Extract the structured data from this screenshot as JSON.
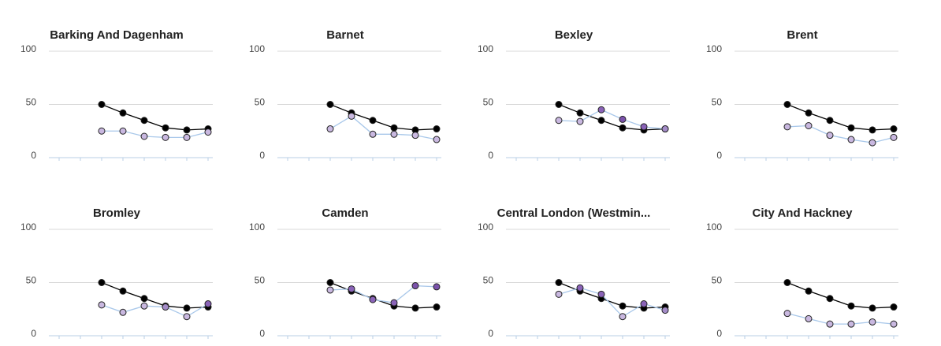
{
  "chart_data": [
    {
      "type": "line",
      "title": "Barking And Dagenham",
      "categories": [
        null,
        null,
        null,
        null,
        null,
        null,
        null,
        null
      ],
      "ylim": [
        0,
        100
      ],
      "yticks": [
        0,
        50,
        100
      ],
      "grid": true,
      "series": [
        {
          "color": "#000000",
          "values": [
            null,
            null,
            50,
            42,
            35,
            28,
            26,
            27
          ]
        },
        {
          "color": "#a9c8ea",
          "values": [
            null,
            null,
            25,
            25,
            20,
            19,
            19,
            24
          ],
          "marker_colors": [
            null,
            null,
            "#c9b8e0",
            "#c9b8e0",
            "#c9b8e0",
            "#c9b8e0",
            "#c9b8e0",
            "#c9b8e0"
          ]
        }
      ]
    },
    {
      "type": "line",
      "title": "Barnet",
      "categories": [
        null,
        null,
        null,
        null,
        null,
        null,
        null,
        null
      ],
      "ylim": [
        0,
        100
      ],
      "yticks": [
        0,
        50,
        100
      ],
      "grid": true,
      "series": [
        {
          "color": "#000000",
          "values": [
            null,
            null,
            50,
            42,
            35,
            28,
            26,
            27
          ]
        },
        {
          "color": "#a9c8ea",
          "values": [
            null,
            null,
            27,
            39,
            22,
            22,
            21,
            17
          ],
          "marker_colors": [
            null,
            null,
            "#c9b8e0",
            "#c9b8e0",
            "#c9b8e0",
            "#c9b8e0",
            "#c9b8e0",
            "#c9b8e0"
          ]
        }
      ]
    },
    {
      "type": "line",
      "title": "Bexley",
      "categories": [
        null,
        null,
        null,
        null,
        null,
        null,
        null,
        null
      ],
      "ylim": [
        0,
        100
      ],
      "yticks": [
        0,
        50,
        100
      ],
      "grid": true,
      "series": [
        {
          "color": "#000000",
          "values": [
            null,
            null,
            50,
            42,
            35,
            28,
            26,
            27
          ]
        },
        {
          "color": "#a9c8ea",
          "values": [
            null,
            null,
            35,
            34,
            45,
            36,
            29,
            27
          ],
          "marker_colors": [
            null,
            null,
            "#c9b8e0",
            "#c9b8e0",
            "#8a63b8",
            "#7b52ab",
            "#8a63b8",
            "#a48cc8"
          ]
        }
      ]
    },
    {
      "type": "line",
      "title": "Brent",
      "categories": [
        null,
        null,
        null,
        null,
        null,
        null,
        null,
        null
      ],
      "ylim": [
        0,
        100
      ],
      "yticks": [
        0,
        50,
        100
      ],
      "grid": true,
      "series": [
        {
          "color": "#000000",
          "values": [
            null,
            null,
            50,
            42,
            35,
            28,
            26,
            27
          ]
        },
        {
          "color": "#a9c8ea",
          "values": [
            null,
            null,
            29,
            30,
            21,
            17,
            14,
            19
          ],
          "marker_colors": [
            null,
            null,
            "#c9b8e0",
            "#c9b8e0",
            "#c9b8e0",
            "#c9b8e0",
            "#c9b8e0",
            "#c9b8e0"
          ]
        }
      ]
    },
    {
      "type": "line",
      "title": "Bromley",
      "categories": [
        null,
        null,
        null,
        null,
        null,
        null,
        null,
        null
      ],
      "ylim": [
        0,
        100
      ],
      "yticks": [
        0,
        50,
        100
      ],
      "grid": true,
      "series": [
        {
          "color": "#000000",
          "values": [
            null,
            null,
            50,
            42,
            35,
            28,
            26,
            27
          ]
        },
        {
          "color": "#a9c8ea",
          "values": [
            null,
            null,
            29,
            22,
            28,
            27,
            18,
            30
          ],
          "marker_colors": [
            null,
            null,
            "#c9b8e0",
            "#c9b8e0",
            "#c9b8e0",
            "#a48cc8",
            "#c9b8e0",
            "#8a63b8"
          ]
        }
      ]
    },
    {
      "type": "line",
      "title": "Camden",
      "categories": [
        null,
        null,
        null,
        null,
        null,
        null,
        null,
        null
      ],
      "ylim": [
        0,
        100
      ],
      "yticks": [
        0,
        50,
        100
      ],
      "grid": true,
      "series": [
        {
          "color": "#000000",
          "values": [
            null,
            null,
            50,
            42,
            35,
            28,
            26,
            27
          ]
        },
        {
          "color": "#a9c8ea",
          "values": [
            null,
            null,
            43,
            44,
            34,
            31,
            47,
            46
          ],
          "marker_colors": [
            null,
            null,
            "#c9b8e0",
            "#8a63b8",
            "#8a63b8",
            "#8a63b8",
            "#7b52ab",
            "#7b52ab"
          ]
        }
      ]
    },
    {
      "type": "line",
      "title": "Central London (Westmin...",
      "categories": [
        null,
        null,
        null,
        null,
        null,
        null,
        null,
        null
      ],
      "ylim": [
        0,
        100
      ],
      "yticks": [
        0,
        50,
        100
      ],
      "grid": true,
      "series": [
        {
          "color": "#000000",
          "values": [
            null,
            null,
            50,
            42,
            35,
            28,
            26,
            27
          ]
        },
        {
          "color": "#a9c8ea",
          "values": [
            null,
            null,
            39,
            45,
            39,
            18,
            30,
            24
          ],
          "marker_colors": [
            null,
            null,
            "#c9b8e0",
            "#8a63b8",
            "#8a63b8",
            "#c9b8e0",
            "#8a63b8",
            "#a48cc8"
          ]
        }
      ]
    },
    {
      "type": "line",
      "title": "City And Hackney",
      "categories": [
        null,
        null,
        null,
        null,
        null,
        null,
        null,
        null
      ],
      "ylim": [
        0,
        100
      ],
      "yticks": [
        0,
        50,
        100
      ],
      "grid": true,
      "series": [
        {
          "color": "#000000",
          "values": [
            null,
            null,
            50,
            42,
            35,
            28,
            26,
            27
          ]
        },
        {
          "color": "#a9c8ea",
          "values": [
            null,
            null,
            21,
            16,
            11,
            11,
            13,
            11
          ],
          "marker_colors": [
            null,
            null,
            "#c9b8e0",
            "#c9b8e0",
            "#c9b8e0",
            "#c9b8e0",
            "#c9b8e0",
            "#c9b8e0"
          ]
        }
      ]
    }
  ]
}
